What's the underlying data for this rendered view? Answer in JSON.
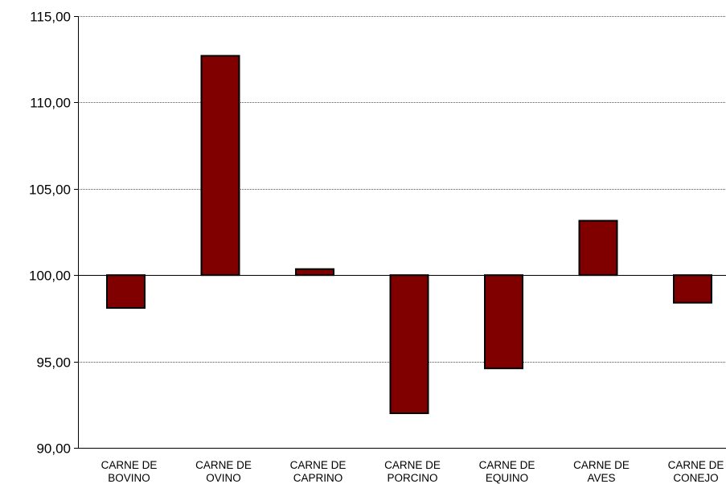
{
  "chart_data": {
    "type": "bar",
    "title": "",
    "xlabel": "",
    "ylabel": "",
    "baseline": 100,
    "ylim": [
      90,
      115
    ],
    "yticks": [
      90,
      95,
      100,
      105,
      110,
      115
    ],
    "ytick_labels": [
      "90,00",
      "95,00",
      "100,00",
      "105,00",
      "110,00",
      "115,00"
    ],
    "grid": "horizontal-dotted",
    "categories": [
      [
        "CARNE DE",
        "BOVINO"
      ],
      [
        "CARNE DE",
        "OVINO"
      ],
      [
        "CARNE DE",
        "CAPRINO"
      ],
      [
        "CARNE DE",
        "PORCINO"
      ],
      [
        "CARNE DE",
        "EQUINO"
      ],
      [
        "CARNE DE",
        "AVES"
      ],
      [
        "CARNE DE",
        "CONEJO"
      ]
    ],
    "values": [
      98.1,
      112.7,
      100.35,
      92.0,
      94.6,
      103.15,
      98.4
    ],
    "bar_color": "#800000",
    "bar_border": "#000000"
  }
}
